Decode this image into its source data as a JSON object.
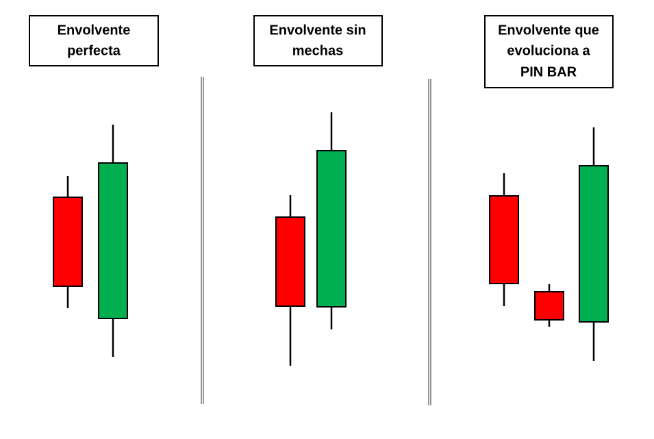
{
  "panels": [
    {
      "label": [
        "Envolvente",
        "perfecta"
      ]
    },
    {
      "label": [
        "Envolvente sin",
        "mechas"
      ]
    },
    {
      "label": [
        "Envolvente que",
        "evoluciona a",
        "PIN BAR"
      ]
    }
  ]
}
